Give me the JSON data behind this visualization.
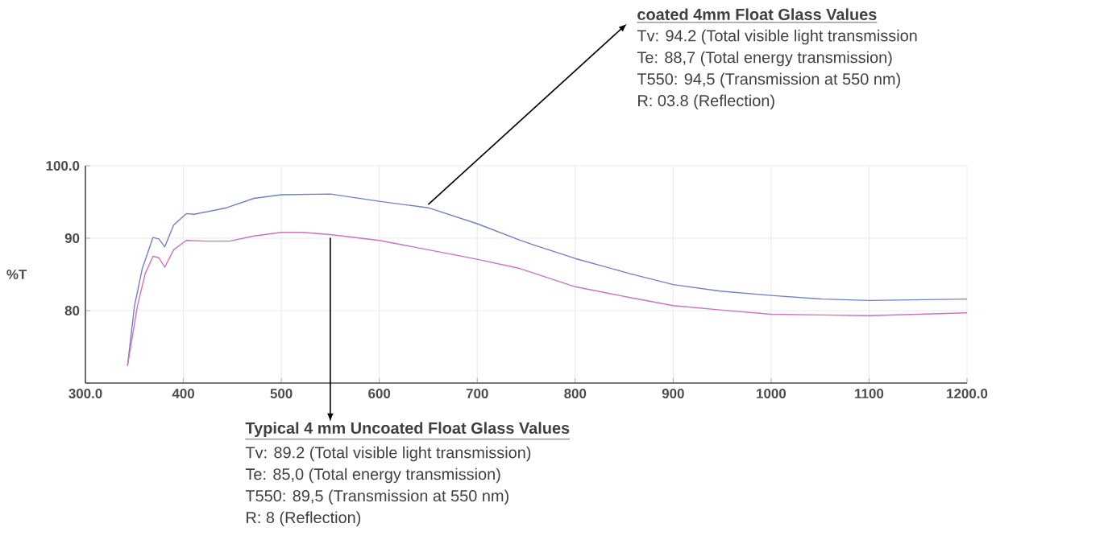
{
  "chart_data": {
    "type": "line",
    "ylabel": "%T",
    "xlim": [
      300,
      1200
    ],
    "ylim": [
      70,
      100
    ],
    "xticks": [
      {
        "value": 300,
        "label": "300.0"
      },
      400,
      500,
      600,
      700,
      800,
      900,
      1000,
      1100,
      {
        "value": 1200,
        "label": "1200.0"
      }
    ],
    "yticks": [
      {
        "value": 70,
        "label": null
      },
      80,
      90,
      {
        "value": 100,
        "label": "100.0"
      }
    ],
    "grid": true,
    "marker": "none",
    "line_style": "solid",
    "series": [
      {
        "color": "#6f80cc",
        "x": [
          343,
          350,
          358,
          369,
          375,
          381,
          390,
          403,
          411,
          444,
          472,
          500,
          550,
          600,
          650,
          700,
          744,
          757,
          800,
          856,
          900,
          948,
          1000,
          1052,
          1100,
          1200
        ],
        "values": [
          72.4,
          80.6,
          85.8,
          90.1,
          89.9,
          88.8,
          91.8,
          93.4,
          93.3,
          94.2,
          95.5,
          96.0,
          96.1,
          95.1,
          94.2,
          92.0,
          89.7,
          89.1,
          87.2,
          85.1,
          83.6,
          82.7,
          82.1,
          81.6,
          81.4,
          81.6
        ]
      },
      {
        "color": "#d070c0",
        "x": [
          343,
          353,
          361,
          369,
          375,
          381,
          390,
          403,
          422,
          447,
          472,
          500,
          522,
          550,
          600,
          650,
          700,
          744,
          800,
          856,
          900,
          948,
          1000,
          1052,
          1100,
          1200
        ],
        "values": [
          72.4,
          80.6,
          85.1,
          87.5,
          87.3,
          86.0,
          88.4,
          89.7,
          89.6,
          89.6,
          90.3,
          90.8,
          90.8,
          90.5,
          89.7,
          88.4,
          87.1,
          85.8,
          83.3,
          81.8,
          80.7,
          80.1,
          79.5,
          79.4,
          79.3,
          79.7
        ]
      }
    ],
    "annotations": [
      {
        "text": "coated 4mm Float Glass Values",
        "x": 650,
        "y": 94.2
      },
      "Tv: 94.2 (Total visible light transmission",
      "Te: 88,7 (Total energy transmission)",
      "T550: 94,5 (Transmission at 550 nm)",
      "R: 03.8 (Reflection)",
      {
        "text": "Typical 4 mm Uncoated Float Glass Values",
        "x": 550,
        "y": 90.5
      },
      "Tv: 89.2 (Total visible light transmission)",
      "Te: 85,0 (Total energy transmission)",
      "T550: 89,5 (Transmission at 550 nm)",
      "R: 8 (Reflection)"
    ]
  }
}
